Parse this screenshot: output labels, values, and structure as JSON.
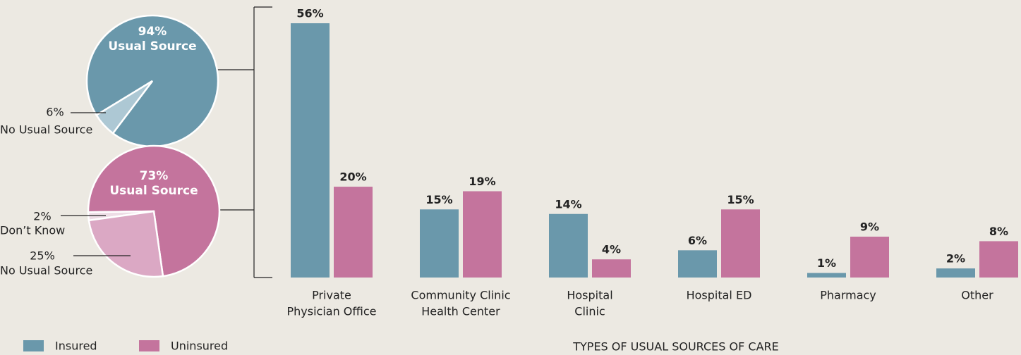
{
  "chart_data": [
    {
      "type": "pie",
      "categories": [
        "Usual Source",
        "No Usual Source"
      ],
      "values": [
        94,
        6
      ],
      "value_labels": [
        "94%",
        "6%"
      ],
      "colors": [
        "#6a98ab",
        "#adc8d4"
      ]
    },
    {
      "type": "pie",
      "categories": [
        "Usual Source",
        "Don’t Know",
        "No Usual Source"
      ],
      "values": [
        73,
        2,
        25
      ],
      "value_labels": [
        "73%",
        "2%",
        "25%"
      ],
      "colors": [
        "#c4749d",
        "#eedde6",
        "#dba8c4"
      ]
    },
    {
      "type": "bar",
      "x_label": "TYPES OF USUAL SOURCES OF CARE",
      "categories": [
        [
          "Private",
          "Physician Office"
        ],
        [
          "Community Clinic",
          "Health Center"
        ],
        [
          "Hospital",
          "Clinic"
        ],
        [
          "Hospital ED"
        ],
        [
          "Pharmacy"
        ],
        [
          "Other"
        ]
      ],
      "series": [
        {
          "name": "Insured",
          "color": "#6a98ab",
          "values": [
            56,
            15,
            14,
            6,
            1,
            2
          ],
          "value_labels": [
            "56%",
            "15%",
            "14%",
            "6%",
            "1%",
            "2%"
          ]
        },
        {
          "name": "Uninsured",
          "color": "#c4749d",
          "values": [
            20,
            19,
            4,
            15,
            9,
            8
          ],
          "value_labels": [
            "20%",
            "19%",
            "4%",
            "15%",
            "9%",
            "8%"
          ]
        }
      ]
    }
  ]
}
